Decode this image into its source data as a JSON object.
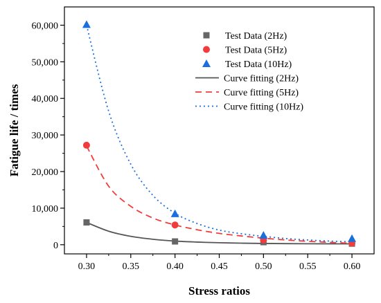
{
  "chart_data": {
    "type": "scatter",
    "xlabel": "Stress ratios",
    "ylabel": "Fatigue life / times",
    "xlim": [
      0.275,
      0.625
    ],
    "ylim": [
      -2500,
      65000
    ],
    "x_ticks": [
      0.3,
      0.35,
      0.4,
      0.45,
      0.5,
      0.55,
      0.6
    ],
    "x_tick_labels": [
      "0.30",
      "0.35",
      "0.40",
      "0.45",
      "0.50",
      "0.55",
      "0.60"
    ],
    "y_ticks": [
      0,
      10000,
      20000,
      30000,
      40000,
      50000,
      60000
    ],
    "y_tick_labels": [
      "0",
      "10,000",
      "20,000",
      "30,000",
      "40,000",
      "50,000",
      "60,000"
    ],
    "grid": false,
    "legend_position": "top-right",
    "series": [
      {
        "name": "Test Data (2Hz)",
        "kind": "points",
        "marker": "square",
        "color": "#666666",
        "x": [
          0.3,
          0.4,
          0.5,
          0.6
        ],
        "y": [
          6100,
          900,
          700,
          300
        ]
      },
      {
        "name": "Test Data (5Hz)",
        "kind": "points",
        "marker": "circle",
        "color": "#f03c3c",
        "x": [
          0.3,
          0.4,
          0.5,
          0.6
        ],
        "y": [
          27200,
          5400,
          1300,
          400
        ]
      },
      {
        "name": "Test Data (10Hz)",
        "kind": "points",
        "marker": "triangle",
        "color": "#1a6fdc",
        "x": [
          0.3,
          0.4,
          0.5,
          0.6
        ],
        "y": [
          60200,
          8500,
          2600,
          1700
        ]
      },
      {
        "name": "Curve fitting (2Hz)",
        "kind": "curve",
        "dash": "solid",
        "color": "#555555",
        "x": [
          0.3,
          0.325,
          0.35,
          0.375,
          0.4,
          0.425,
          0.45,
          0.475,
          0.5,
          0.525,
          0.55,
          0.575,
          0.6
        ],
        "y": [
          6100,
          3700,
          2300,
          1500,
          1000,
          730,
          550,
          430,
          350,
          300,
          270,
          250,
          240
        ]
      },
      {
        "name": "Curve fitting (5Hz)",
        "kind": "curve",
        "dash": "dashed",
        "color": "#f03c3c",
        "x": [
          0.3,
          0.325,
          0.35,
          0.375,
          0.4,
          0.425,
          0.45,
          0.475,
          0.5,
          0.525,
          0.55,
          0.575,
          0.6
        ],
        "y": [
          27000,
          16000,
          10500,
          7300,
          5400,
          4100,
          3100,
          2400,
          1800,
          1300,
          950,
          650,
          400
        ]
      },
      {
        "name": "Curve fitting (10Hz)",
        "kind": "curve",
        "dash": "dotted",
        "color": "#1a6fdc",
        "x": [
          0.3,
          0.325,
          0.35,
          0.375,
          0.4,
          0.425,
          0.45,
          0.475,
          0.5,
          0.525,
          0.55,
          0.575,
          0.6
        ],
        "y": [
          60000,
          36500,
          22000,
          13500,
          8600,
          5800,
          4000,
          3000,
          2300,
          1700,
          1300,
          1000,
          800
        ]
      }
    ]
  }
}
